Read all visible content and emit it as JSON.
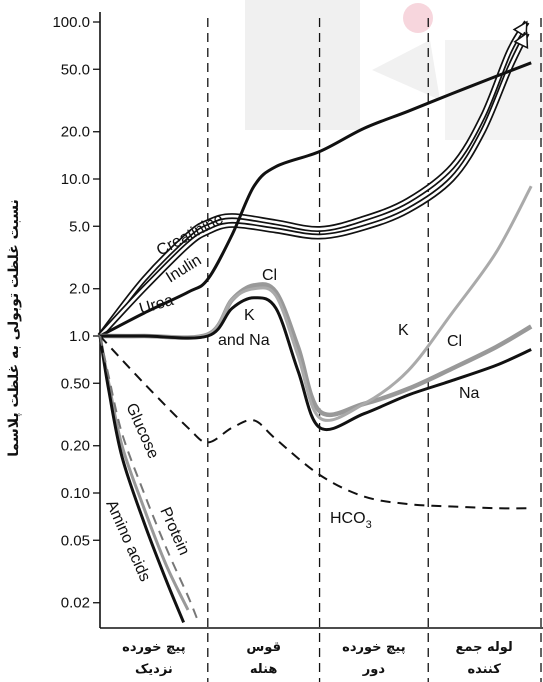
{
  "chart_data": {
    "type": "line",
    "ylabel": "نسبت غلظت توبولی به غلظت پلاسما",
    "y_scale": "log",
    "ylim": [
      0.015,
      120
    ],
    "y_ticks": [
      {
        "value": 100,
        "label": "100.0"
      },
      {
        "value": 50,
        "label": "50.0"
      },
      {
        "value": 20,
        "label": "20.0"
      },
      {
        "value": 10,
        "label": "10.0"
      },
      {
        "value": 5,
        "label": "5.0"
      },
      {
        "value": 2,
        "label": "2.0"
      },
      {
        "value": 1,
        "label": "1.0"
      },
      {
        "value": 0.5,
        "label": "0.50"
      },
      {
        "value": 0.2,
        "label": "0.20"
      },
      {
        "value": 0.1,
        "label": "0.10"
      },
      {
        "value": 0.05,
        "label": "0.05"
      },
      {
        "value": 0.02,
        "label": "0.02"
      }
    ],
    "segments": [
      {
        "line1": "پیچ خورده",
        "line2": "نزدیک"
      },
      {
        "line1": "قوس",
        "line2": "هنله"
      },
      {
        "line1": "پیچ خورده",
        "line2": "دور"
      },
      {
        "line1": "لوله جمع",
        "line2": "کننده"
      }
    ],
    "x_range": [
      0,
      1
    ],
    "segment_boundaries": [
      0.245,
      0.499,
      0.746
    ],
    "series": [
      {
        "name": "Creatinine",
        "style": "double",
        "color": "#111111",
        "points": [
          [
            0,
            1
          ],
          [
            0.1,
            2.3
          ],
          [
            0.2,
            4.4
          ],
          [
            0.245,
            5.3
          ],
          [
            0.3,
            5.8
          ],
          [
            0.4,
            5.3
          ],
          [
            0.5,
            4.8
          ],
          [
            0.6,
            5.6
          ],
          [
            0.7,
            7.3
          ],
          [
            0.8,
            12
          ],
          [
            0.87,
            25
          ],
          [
            0.93,
            65
          ],
          [
            0.97,
            100
          ]
        ]
      },
      {
        "name": "Inulin",
        "style": "double",
        "color": "#111111",
        "points": [
          [
            0,
            1
          ],
          [
            0.1,
            2.0
          ],
          [
            0.2,
            3.8
          ],
          [
            0.245,
            4.6
          ],
          [
            0.3,
            5.1
          ],
          [
            0.4,
            4.7
          ],
          [
            0.5,
            4.3
          ],
          [
            0.6,
            4.9
          ],
          [
            0.7,
            6.3
          ],
          [
            0.8,
            10
          ],
          [
            0.87,
            20
          ],
          [
            0.93,
            50
          ],
          [
            0.97,
            85
          ]
        ]
      },
      {
        "name": "Urea",
        "style": "solid",
        "color": "#111111",
        "points": [
          [
            0,
            1
          ],
          [
            0.1,
            1.4
          ],
          [
            0.2,
            1.9
          ],
          [
            0.245,
            2.3
          ],
          [
            0.3,
            4.4
          ],
          [
            0.35,
            9
          ],
          [
            0.4,
            12
          ],
          [
            0.5,
            15
          ],
          [
            0.6,
            21
          ],
          [
            0.7,
            27
          ],
          [
            0.8,
            35
          ],
          [
            0.9,
            45
          ],
          [
            0.98,
            55
          ]
        ]
      },
      {
        "name": "Cl",
        "style": "solid",
        "color": "#999999",
        "points": [
          [
            0,
            1
          ],
          [
            0.1,
            1.0
          ],
          [
            0.245,
            1.02
          ],
          [
            0.3,
            1.7
          ],
          [
            0.35,
            2.1
          ],
          [
            0.4,
            1.9
          ],
          [
            0.45,
            0.85
          ],
          [
            0.5,
            0.33
          ],
          [
            0.6,
            0.37
          ],
          [
            0.7,
            0.46
          ],
          [
            0.8,
            0.62
          ],
          [
            0.9,
            0.85
          ],
          [
            0.98,
            1.15
          ]
        ]
      },
      {
        "name": "K",
        "style": "solid",
        "color": "#aaaaaa",
        "points": [
          [
            0,
            1
          ],
          [
            0.1,
            1.0
          ],
          [
            0.245,
            1.02
          ],
          [
            0.3,
            1.7
          ],
          [
            0.35,
            2.0
          ],
          [
            0.4,
            1.8
          ],
          [
            0.45,
            0.75
          ],
          [
            0.5,
            0.3
          ],
          [
            0.6,
            0.37
          ],
          [
            0.7,
            0.6
          ],
          [
            0.8,
            1.4
          ],
          [
            0.9,
            3.4
          ],
          [
            0.98,
            9.0
          ]
        ]
      },
      {
        "name": "Na",
        "style": "solid",
        "color": "#111111",
        "points": [
          [
            0,
            1
          ],
          [
            0.1,
            1.0
          ],
          [
            0.245,
            1.0
          ],
          [
            0.3,
            1.5
          ],
          [
            0.35,
            1.75
          ],
          [
            0.4,
            1.5
          ],
          [
            0.45,
            0.6
          ],
          [
            0.5,
            0.26
          ],
          [
            0.6,
            0.32
          ],
          [
            0.7,
            0.42
          ],
          [
            0.8,
            0.52
          ],
          [
            0.9,
            0.65
          ],
          [
            0.98,
            0.82
          ]
        ]
      },
      {
        "name": "HCO3",
        "style": "dashed",
        "color": "#111111",
        "points": [
          [
            0,
            1
          ],
          [
            0.1,
            0.5
          ],
          [
            0.2,
            0.26
          ],
          [
            0.245,
            0.21
          ],
          [
            0.3,
            0.26
          ],
          [
            0.35,
            0.29
          ],
          [
            0.4,
            0.22
          ],
          [
            0.5,
            0.13
          ],
          [
            0.6,
            0.095
          ],
          [
            0.7,
            0.085
          ],
          [
            0.8,
            0.082
          ],
          [
            0.9,
            0.08
          ],
          [
            0.98,
            0.08
          ]
        ]
      },
      {
        "name": "Glucose",
        "style": "solid",
        "color": "#999999",
        "points": [
          [
            0,
            1
          ],
          [
            0.02,
            0.5
          ],
          [
            0.05,
            0.2
          ],
          [
            0.1,
            0.08
          ],
          [
            0.15,
            0.035
          ],
          [
            0.2,
            0.018
          ]
        ]
      },
      {
        "name": "Amino acids",
        "style": "solid",
        "color": "#111111",
        "points": [
          [
            0,
            1
          ],
          [
            0.02,
            0.45
          ],
          [
            0.05,
            0.17
          ],
          [
            0.1,
            0.065
          ],
          [
            0.15,
            0.028
          ],
          [
            0.19,
            0.015
          ]
        ]
      },
      {
        "name": "Protein",
        "style": "dashed",
        "color": "#777777",
        "points": [
          [
            0,
            1
          ],
          [
            0.02,
            0.55
          ],
          [
            0.05,
            0.24
          ],
          [
            0.1,
            0.1
          ],
          [
            0.15,
            0.045
          ],
          [
            0.2,
            0.022
          ],
          [
            0.22,
            0.016
          ]
        ]
      }
    ],
    "labels": [
      {
        "text": "Creatinine",
        "series": "Creatinine"
      },
      {
        "text": "Inulin",
        "series": "Inulin"
      },
      {
        "text": "Urea",
        "series": "Urea"
      },
      {
        "text": "Cl",
        "series": "Cl"
      },
      {
        "text": "K",
        "series": "K"
      },
      {
        "text": "and Na",
        "series": "Na"
      },
      {
        "text": "K",
        "series": "K"
      },
      {
        "text": "Cl",
        "series": "Cl"
      },
      {
        "text": "Na",
        "series": "Na"
      },
      {
        "text": "Glucose",
        "series": "Glucose"
      },
      {
        "text": "Protein",
        "series": "Protein"
      },
      {
        "text": "Amino acids",
        "series": "Amino acids"
      }
    ],
    "hco3_label": {
      "base": "HCO",
      "sub": "3"
    },
    "grid": false
  }
}
